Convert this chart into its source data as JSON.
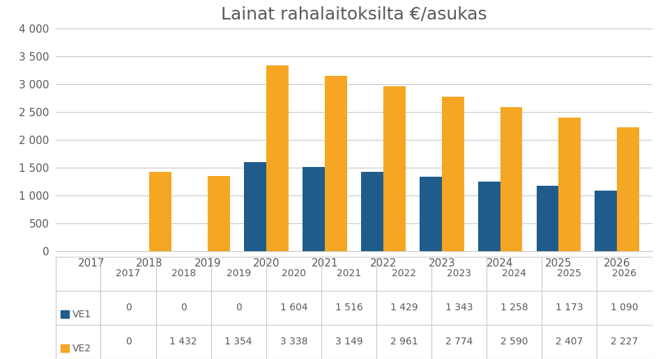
{
  "title": "Lainat rahalaitoksilta €/asukas",
  "categories": [
    "2017",
    "2018",
    "2019",
    "2020",
    "2021",
    "2022",
    "2023",
    "2024",
    "2025",
    "2026"
  ],
  "ve1": [
    0,
    0,
    0,
    1604,
    1516,
    1429,
    1343,
    1258,
    1173,
    1090
  ],
  "ve2": [
    0,
    1432,
    1354,
    3338,
    3149,
    2961,
    2774,
    2590,
    2407,
    2227
  ],
  "ve1_label": "VE1",
  "ve2_label": "VE2",
  "ve1_color": "#1f5c8b",
  "ve2_color": "#f5a623",
  "ylim": [
    0,
    4000
  ],
  "yticks": [
    0,
    500,
    1000,
    1500,
    2000,
    2500,
    3000,
    3500,
    4000
  ],
  "background_color": "#ffffff",
  "grid_color": "#c8c8c8",
  "title_fontsize": 18,
  "tick_fontsize": 11,
  "table_ve1_values": [
    "0",
    "0",
    "0",
    "1 604",
    "1 516",
    "1 429",
    "1 343",
    "1 258",
    "1 173",
    "1 090"
  ],
  "table_ve2_values": [
    "0",
    "1 432",
    "1 354",
    "3 338",
    "3 149",
    "2 961",
    "2 774",
    "2 590",
    "2 407",
    "2 227"
  ]
}
